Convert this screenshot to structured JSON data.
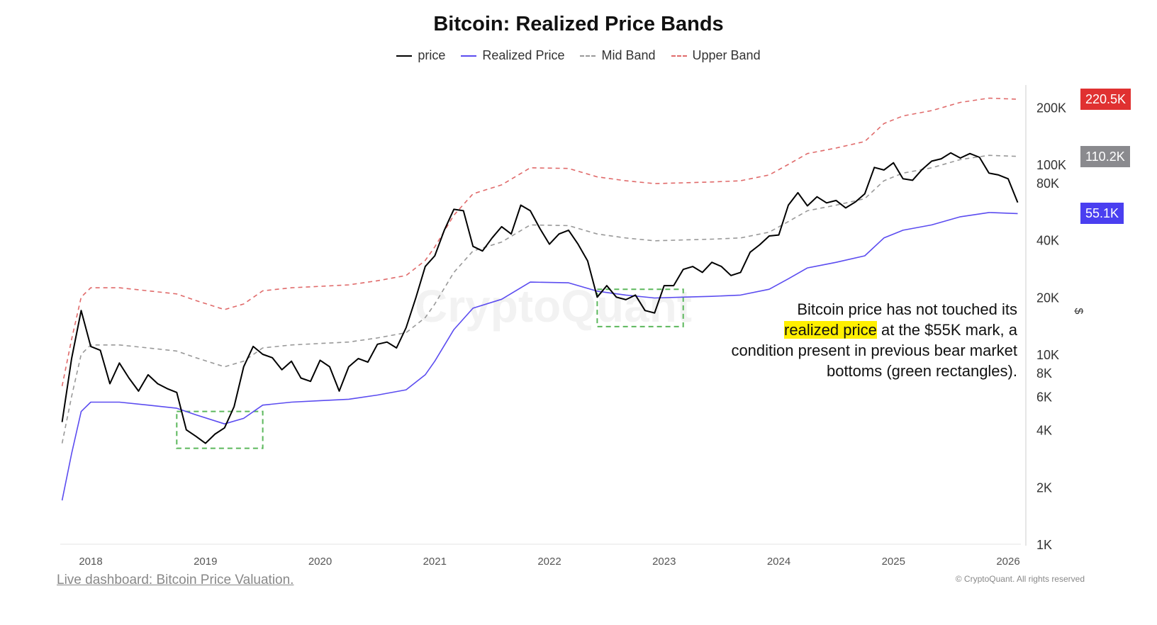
{
  "chart_data": {
    "type": "line",
    "title": "Bitcoin: Realized Price Bands",
    "y_scale": "log",
    "ylim": [
      1000,
      260000
    ],
    "xlim": [
      "2017-10",
      "2026-02"
    ],
    "y_unit": "$",
    "y_ticks": [
      {
        "value": 1000,
        "label": "1K"
      },
      {
        "value": 2000,
        "label": "2K"
      },
      {
        "value": 4000,
        "label": "4K"
      },
      {
        "value": 6000,
        "label": "6K"
      },
      {
        "value": 8000,
        "label": "8K"
      },
      {
        "value": 10000,
        "label": "10K"
      },
      {
        "value": 20000,
        "label": "20K"
      },
      {
        "value": 40000,
        "label": "40K"
      },
      {
        "value": 80000,
        "label": "80K"
      },
      {
        "value": 100000,
        "label": "100K"
      },
      {
        "value": 200000,
        "label": "200K"
      }
    ],
    "x_ticks": [
      "2018",
      "2019",
      "2020",
      "2021",
      "2022",
      "2023",
      "2024",
      "2025",
      "2026"
    ],
    "legend_position": "top-center",
    "series": [
      {
        "name": "price",
        "color": "#000000",
        "dash": "solid",
        "points": [
          [
            "2017-10",
            4400
          ],
          [
            "2017-11",
            9500
          ],
          [
            "2017-12",
            17000
          ],
          [
            "2018-01",
            11000
          ],
          [
            "2018-02",
            10500
          ],
          [
            "2018-03",
            7000
          ],
          [
            "2018-04",
            9000
          ],
          [
            "2018-05",
            7500
          ],
          [
            "2018-06",
            6400
          ],
          [
            "2018-07",
            7800
          ],
          [
            "2018-08",
            7000
          ],
          [
            "2018-09",
            6600
          ],
          [
            "2018-10",
            6300
          ],
          [
            "2018-11",
            4000
          ],
          [
            "2018-12",
            3700
          ],
          [
            "2019-01",
            3400
          ],
          [
            "2019-02",
            3800
          ],
          [
            "2019-03",
            4100
          ],
          [
            "2019-04",
            5300
          ],
          [
            "2019-05",
            8600
          ],
          [
            "2019-06",
            11000
          ],
          [
            "2019-07",
            10000
          ],
          [
            "2019-08",
            9600
          ],
          [
            "2019-09",
            8300
          ],
          [
            "2019-10",
            9200
          ],
          [
            "2019-11",
            7500
          ],
          [
            "2019-12",
            7200
          ],
          [
            "2020-01",
            9300
          ],
          [
            "2020-02",
            8600
          ],
          [
            "2020-03",
            6400
          ],
          [
            "2020-04",
            8600
          ],
          [
            "2020-05",
            9500
          ],
          [
            "2020-06",
            9100
          ],
          [
            "2020-07",
            11300
          ],
          [
            "2020-08",
            11600
          ],
          [
            "2020-09",
            10800
          ],
          [
            "2020-10",
            13800
          ],
          [
            "2020-11",
            19700
          ],
          [
            "2020-12",
            29000
          ],
          [
            "2021-01",
            33000
          ],
          [
            "2021-02",
            45000
          ],
          [
            "2021-03",
            58000
          ],
          [
            "2021-04",
            57000
          ],
          [
            "2021-05",
            37000
          ],
          [
            "2021-06",
            35000
          ],
          [
            "2021-07",
            41000
          ],
          [
            "2021-08",
            47000
          ],
          [
            "2021-09",
            43000
          ],
          [
            "2021-10",
            61000
          ],
          [
            "2021-11",
            57000
          ],
          [
            "2021-12",
            46000
          ],
          [
            "2022-01",
            38000
          ],
          [
            "2022-02",
            43000
          ],
          [
            "2022-03",
            45000
          ],
          [
            "2022-04",
            38000
          ],
          [
            "2022-05",
            31000
          ],
          [
            "2022-06",
            20000
          ],
          [
            "2022-07",
            23000
          ],
          [
            "2022-08",
            20000
          ],
          [
            "2022-09",
            19400
          ],
          [
            "2022-10",
            20500
          ],
          [
            "2022-11",
            17000
          ],
          [
            "2022-12",
            16500
          ],
          [
            "2023-01",
            23000
          ],
          [
            "2023-02",
            23000
          ],
          [
            "2023-03",
            28000
          ],
          [
            "2023-04",
            29000
          ],
          [
            "2023-05",
            27000
          ],
          [
            "2023-06",
            30500
          ],
          [
            "2023-07",
            29000
          ],
          [
            "2023-08",
            26000
          ],
          [
            "2023-09",
            27000
          ],
          [
            "2023-10",
            34500
          ],
          [
            "2023-11",
            37700
          ],
          [
            "2023-12",
            42000
          ],
          [
            "2024-01",
            42500
          ],
          [
            "2024-02",
            61000
          ],
          [
            "2024-03",
            71000
          ],
          [
            "2024-04",
            60500
          ],
          [
            "2024-05",
            67500
          ],
          [
            "2024-06",
            62700
          ],
          [
            "2024-07",
            64600
          ],
          [
            "2024-08",
            59000
          ],
          [
            "2024-09",
            63300
          ],
          [
            "2024-10",
            70000
          ],
          [
            "2024-11",
            96400
          ],
          [
            "2024-12",
            93400
          ],
          [
            "2025-01",
            102000
          ],
          [
            "2025-02",
            84000
          ],
          [
            "2025-03",
            82500
          ],
          [
            "2025-04",
            94000
          ],
          [
            "2025-05",
            104000
          ],
          [
            "2025-06",
            107000
          ],
          [
            "2025-07",
            115000
          ],
          [
            "2025-08",
            108000
          ],
          [
            "2025-09",
            114000
          ],
          [
            "2025-10",
            109000
          ],
          [
            "2025-11",
            90000
          ],
          [
            "2025-12",
            88000
          ],
          [
            "2026-01",
            84000
          ],
          [
            "2026-02",
            63000
          ]
        ]
      },
      {
        "name": "Realized Price",
        "color": "#5b4cf0",
        "dash": "solid",
        "points": [
          [
            "2017-10",
            1700
          ],
          [
            "2017-11",
            3000
          ],
          [
            "2017-12",
            5000
          ],
          [
            "2018-01",
            5600
          ],
          [
            "2018-04",
            5600
          ],
          [
            "2018-07",
            5400
          ],
          [
            "2018-10",
            5200
          ],
          [
            "2018-12",
            4800
          ],
          [
            "2019-03",
            4300
          ],
          [
            "2019-05",
            4600
          ],
          [
            "2019-07",
            5400
          ],
          [
            "2019-10",
            5600
          ],
          [
            "2020-01",
            5700
          ],
          [
            "2020-04",
            5800
          ],
          [
            "2020-07",
            6100
          ],
          [
            "2020-10",
            6500
          ],
          [
            "2020-12",
            7800
          ],
          [
            "2021-01",
            9200
          ],
          [
            "2021-03",
            13500
          ],
          [
            "2021-05",
            17500
          ],
          [
            "2021-08",
            19500
          ],
          [
            "2021-11",
            24000
          ],
          [
            "2022-03",
            23800
          ],
          [
            "2022-06",
            21500
          ],
          [
            "2022-09",
            20500
          ],
          [
            "2022-12",
            19800
          ],
          [
            "2023-03",
            20000
          ],
          [
            "2023-06",
            20200
          ],
          [
            "2023-09",
            20500
          ],
          [
            "2023-12",
            22000
          ],
          [
            "2024-02",
            25000
          ],
          [
            "2024-04",
            28500
          ],
          [
            "2024-07",
            30500
          ],
          [
            "2024-10",
            33000
          ],
          [
            "2024-12",
            41000
          ],
          [
            "2025-02",
            45000
          ],
          [
            "2025-05",
            48000
          ],
          [
            "2025-08",
            53000
          ],
          [
            "2025-11",
            55800
          ],
          [
            "2026-02",
            55100
          ]
        ]
      },
      {
        "name": "Mid Band",
        "color": "#999999",
        "dash": "dashed",
        "points": [
          [
            "2017-10",
            3400
          ],
          [
            "2017-11",
            6000
          ],
          [
            "2017-12",
            10000
          ],
          [
            "2018-01",
            11200
          ],
          [
            "2018-04",
            11200
          ],
          [
            "2018-07",
            10800
          ],
          [
            "2018-10",
            10400
          ],
          [
            "2018-12",
            9600
          ],
          [
            "2019-03",
            8600
          ],
          [
            "2019-05",
            9200
          ],
          [
            "2019-07",
            10800
          ],
          [
            "2019-10",
            11200
          ],
          [
            "2020-01",
            11400
          ],
          [
            "2020-04",
            11600
          ],
          [
            "2020-07",
            12200
          ],
          [
            "2020-10",
            13000
          ],
          [
            "2020-12",
            15600
          ],
          [
            "2021-01",
            18400
          ],
          [
            "2021-03",
            27000
          ],
          [
            "2021-05",
            35000
          ],
          [
            "2021-08",
            39000
          ],
          [
            "2021-11",
            48000
          ],
          [
            "2022-03",
            47600
          ],
          [
            "2022-06",
            43000
          ],
          [
            "2022-09",
            41000
          ],
          [
            "2022-12",
            39600
          ],
          [
            "2023-03",
            40000
          ],
          [
            "2023-06",
            40400
          ],
          [
            "2023-09",
            41000
          ],
          [
            "2023-12",
            44000
          ],
          [
            "2024-02",
            50000
          ],
          [
            "2024-04",
            57000
          ],
          [
            "2024-07",
            61000
          ],
          [
            "2024-10",
            66000
          ],
          [
            "2024-12",
            82000
          ],
          [
            "2025-02",
            90000
          ],
          [
            "2025-05",
            96000
          ],
          [
            "2025-08",
            106000
          ],
          [
            "2025-11",
            111600
          ],
          [
            "2026-02",
            110200
          ]
        ]
      },
      {
        "name": "Upper Band",
        "color": "#e06a6a",
        "dash": "dashed",
        "points": [
          [
            "2017-10",
            6800
          ],
          [
            "2017-11",
            12000
          ],
          [
            "2017-12",
            20000
          ],
          [
            "2018-01",
            22400
          ],
          [
            "2018-04",
            22400
          ],
          [
            "2018-07",
            21600
          ],
          [
            "2018-10",
            20800
          ],
          [
            "2018-12",
            19200
          ],
          [
            "2019-03",
            17200
          ],
          [
            "2019-05",
            18400
          ],
          [
            "2019-07",
            21600
          ],
          [
            "2019-10",
            22400
          ],
          [
            "2020-01",
            22800
          ],
          [
            "2020-04",
            23200
          ],
          [
            "2020-07",
            24400
          ],
          [
            "2020-10",
            26000
          ],
          [
            "2020-12",
            31200
          ],
          [
            "2021-01",
            36800
          ],
          [
            "2021-03",
            54000
          ],
          [
            "2021-05",
            70000
          ],
          [
            "2021-08",
            78000
          ],
          [
            "2021-11",
            96000
          ],
          [
            "2022-03",
            95200
          ],
          [
            "2022-06",
            86000
          ],
          [
            "2022-09",
            82000
          ],
          [
            "2022-12",
            79200
          ],
          [
            "2023-03",
            80000
          ],
          [
            "2023-06",
            80800
          ],
          [
            "2023-09",
            82000
          ],
          [
            "2023-12",
            88000
          ],
          [
            "2024-02",
            100000
          ],
          [
            "2024-04",
            114000
          ],
          [
            "2024-07",
            122000
          ],
          [
            "2024-10",
            132000
          ],
          [
            "2024-12",
            164000
          ],
          [
            "2025-02",
            180000
          ],
          [
            "2025-05",
            192000
          ],
          [
            "2025-08",
            212000
          ],
          [
            "2025-11",
            223200
          ],
          [
            "2026-02",
            220500
          ]
        ]
      }
    ],
    "last_value_tags": [
      {
        "label": "220.5K",
        "value": 220500,
        "color": "#e03131"
      },
      {
        "label": "110.2K",
        "value": 110200,
        "color": "#8a8a8e"
      },
      {
        "label": "55.1K",
        "value": 55100,
        "color": "#4a3ff0"
      }
    ],
    "highlight_boxes": [
      {
        "x": [
          "2018-10",
          "2019-07"
        ],
        "y": [
          3200,
          5000
        ],
        "color": "#5cb85c"
      },
      {
        "x": [
          "2022-06",
          "2023-03"
        ],
        "y": [
          14000,
          22000
        ],
        "color": "#5cb85c"
      }
    ],
    "annotation": {
      "before": "Bitcoin price has not touched its",
      "highlight": "realized price",
      "after": " at the $55K mark, a condition present in previous bear market bottoms (green rectangles).",
      "highlight_color": "#ffef00"
    }
  },
  "watermark": "CryptoQuant",
  "footer": {
    "link": "Live dashboard: Bitcoin Price Valuation.",
    "copyright": "© CryptoQuant. All rights reserved"
  }
}
